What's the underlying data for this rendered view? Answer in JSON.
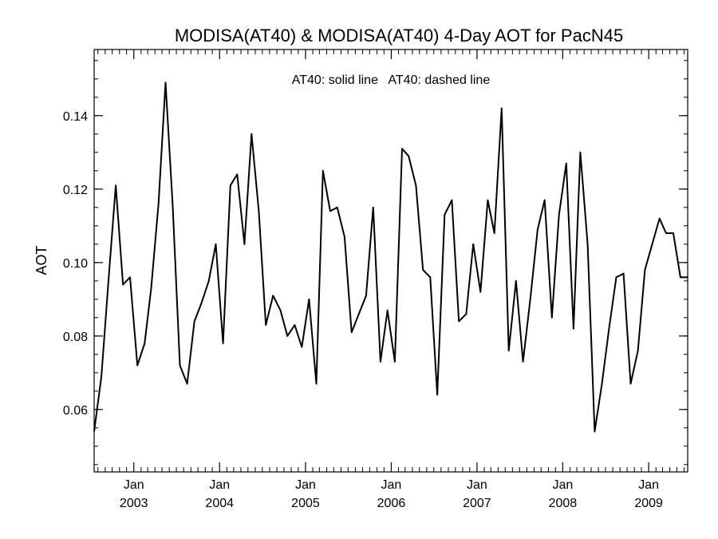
{
  "chart_data": {
    "type": "line",
    "title": "MODISA(AT40) & MODISA(AT40) 4-Day AOT for PacN45",
    "annotation": "AT40: solid line   AT40: dashed line",
    "xlabel": "",
    "ylabel": "AOT",
    "xlim": [
      "2002-07-16",
      "2009-06-16"
    ],
    "ylim": [
      0.043,
      0.158
    ],
    "yticks": [
      0.06,
      0.08,
      0.1,
      0.12,
      0.14
    ],
    "ytick_labels": [
      "0.06",
      "0.08",
      "0.10",
      "0.12",
      "0.14"
    ],
    "xticks": [
      {
        "date": "2003-01-01",
        "month": "Jan",
        "year": "2003"
      },
      {
        "date": "2004-01-01",
        "month": "Jan",
        "year": "2004"
      },
      {
        "date": "2005-01-01",
        "month": "Jan",
        "year": "2005"
      },
      {
        "date": "2006-01-01",
        "month": "Jan",
        "year": "2006"
      },
      {
        "date": "2007-01-01",
        "month": "Jan",
        "year": "2007"
      },
      {
        "date": "2008-01-01",
        "month": "Jan",
        "year": "2008"
      },
      {
        "date": "2009-01-01",
        "month": "Jan",
        "year": "2009"
      }
    ],
    "grid": false,
    "series": [
      {
        "line_style": "solid",
        "color": "#000000",
        "x": [
          "2002-07-16",
          "2002-08-16",
          "2002-09-16",
          "2002-10-16",
          "2002-11-16",
          "2002-12-16",
          "2003-01-16",
          "2003-02-16",
          "2003-03-16",
          "2003-04-16",
          "2003-05-16",
          "2003-06-16",
          "2003-07-16",
          "2003-08-16",
          "2003-09-16",
          "2003-10-16",
          "2003-11-16",
          "2003-12-16",
          "2004-01-16",
          "2004-02-16",
          "2004-03-16",
          "2004-04-16",
          "2004-05-16",
          "2004-06-16",
          "2004-07-16",
          "2004-08-16",
          "2004-09-16",
          "2004-10-16",
          "2004-11-16",
          "2004-12-16",
          "2005-01-16",
          "2005-02-16",
          "2005-03-16",
          "2005-04-16",
          "2005-05-16",
          "2005-06-16",
          "2005-07-16",
          "2005-08-16",
          "2005-09-16",
          "2005-10-16",
          "2005-11-16",
          "2005-12-16",
          "2006-01-16",
          "2006-02-16",
          "2006-03-16",
          "2006-04-16",
          "2006-05-16",
          "2006-06-16",
          "2006-07-16",
          "2006-08-16",
          "2006-09-16",
          "2006-10-16",
          "2006-11-16",
          "2006-12-16",
          "2007-01-16",
          "2007-02-16",
          "2007-03-16",
          "2007-04-16",
          "2007-05-16",
          "2007-06-16",
          "2007-07-16",
          "2007-08-16",
          "2007-09-16",
          "2007-10-16",
          "2007-11-16",
          "2007-12-16",
          "2008-01-16",
          "2008-02-16",
          "2008-03-16",
          "2008-04-16",
          "2008-05-16",
          "2008-06-16",
          "2008-07-16",
          "2008-08-16",
          "2008-09-16",
          "2008-10-16",
          "2008-11-16",
          "2008-12-16",
          "2009-01-16",
          "2009-02-16",
          "2009-03-16",
          "2009-04-16",
          "2009-05-16",
          "2009-06-16"
        ],
        "values": [
          0.054,
          0.069,
          0.096,
          0.121,
          0.094,
          0.096,
          0.072,
          0.078,
          0.093,
          0.116,
          0.149,
          0.115,
          0.072,
          0.067,
          0.084,
          0.089,
          0.095,
          0.105,
          0.078,
          0.121,
          0.124,
          0.105,
          0.135,
          0.114,
          0.083,
          0.091,
          0.087,
          0.08,
          0.083,
          0.077,
          0.09,
          0.067,
          0.125,
          0.114,
          0.115,
          0.107,
          0.081,
          0.086,
          0.091,
          0.115,
          0.073,
          0.087,
          0.073,
          0.131,
          0.129,
          0.121,
          0.098,
          0.096,
          0.064,
          0.113,
          0.117,
          0.084,
          0.086,
          0.105,
          0.092,
          0.117,
          0.108,
          0.142,
          0.076,
          0.095,
          0.073,
          0.09,
          0.109,
          0.117,
          0.085,
          0.113,
          0.127,
          0.082,
          0.13,
          0.105,
          0.054,
          0.067,
          0.082,
          0.096,
          0.097,
          0.067,
          0.076,
          0.098,
          0.105,
          0.112,
          0.108,
          0.108,
          0.096,
          0.096
        ]
      }
    ]
  }
}
